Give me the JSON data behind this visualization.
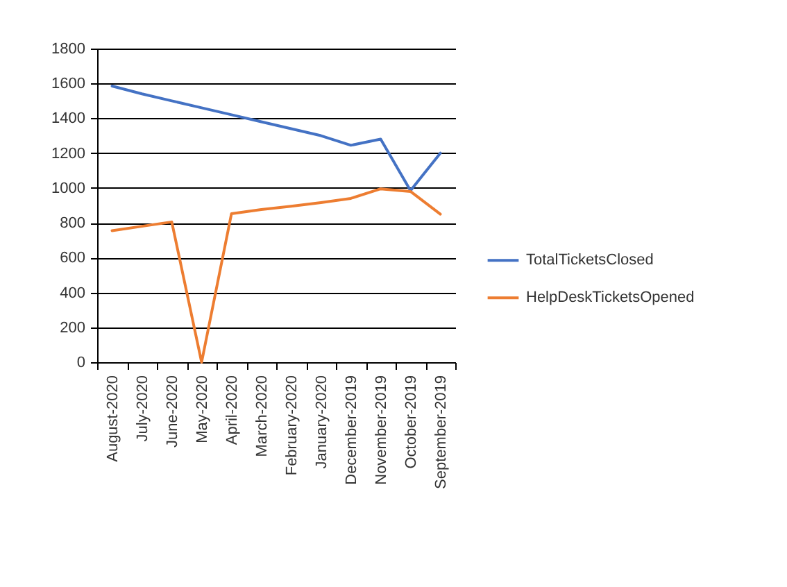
{
  "chart_data": {
    "type": "line",
    "categories": [
      "August-2020",
      "July-2020",
      "June-2020",
      "May-2020",
      "April-2020",
      "March-2020",
      "February-2020",
      "January-2020",
      "December-2019",
      "November-2019",
      "October-2019",
      "September-2019"
    ],
    "series": [
      {
        "name": "TotalTicketsClosed",
        "color": "#4472c4",
        "values": [
          1585,
          1540,
          1500,
          1460,
          1420,
          1380,
          1340,
          1300,
          1245,
          1280,
          985,
          1200
        ]
      },
      {
        "name": "HelpDeskTicketsOpened",
        "color": "#ed7d31",
        "values": [
          755,
          780,
          805,
          0,
          852,
          876,
          895,
          916,
          940,
          995,
          980,
          850
        ]
      }
    ],
    "ylim": [
      0,
      1800
    ],
    "yticks": [
      0,
      200,
      400,
      600,
      800,
      1000,
      1200,
      1400,
      1600,
      1800
    ],
    "grid": "y",
    "legend": "right"
  }
}
